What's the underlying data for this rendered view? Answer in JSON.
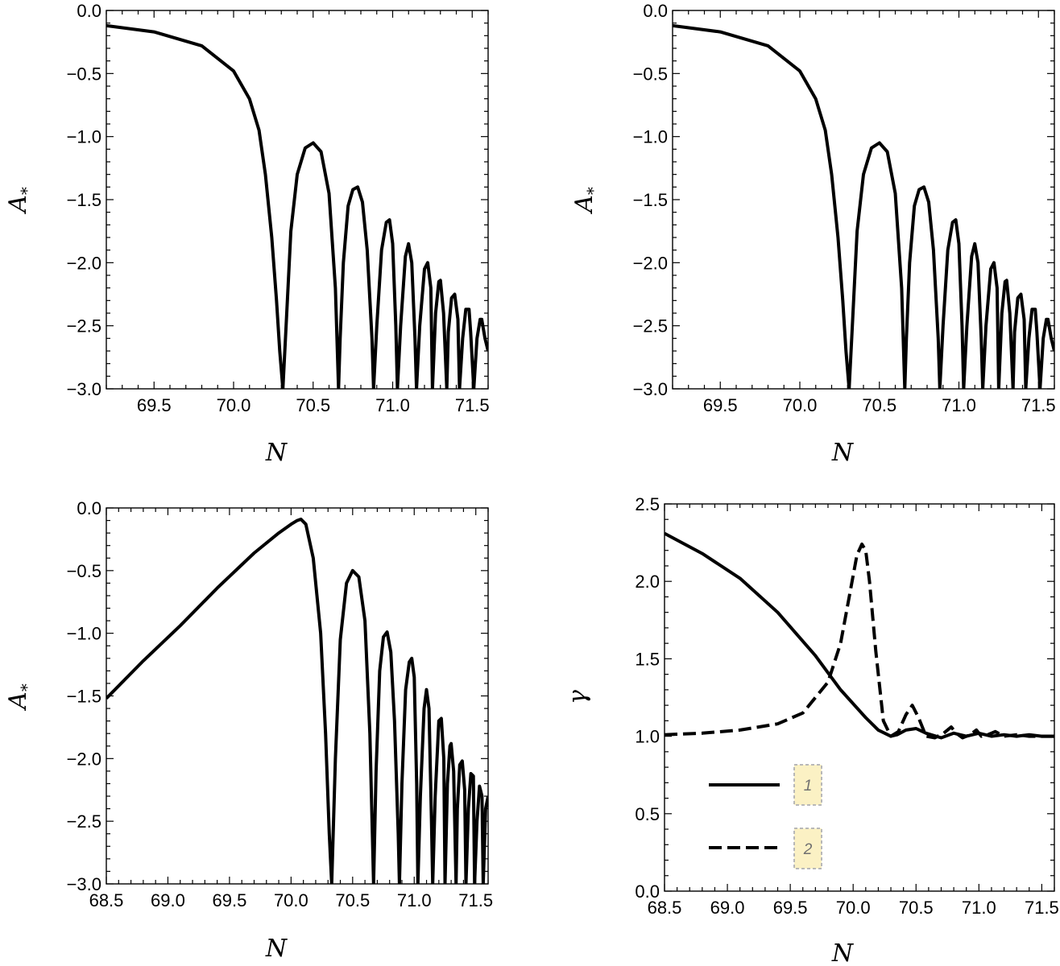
{
  "chart_data": [
    {
      "type": "line",
      "id": "top-left",
      "xlabel": "N",
      "ylabel": "A",
      "ylabel_sub": "*",
      "xlim": [
        69.2,
        71.6
      ],
      "ylim": [
        -3.0,
        0.0
      ],
      "xticks": [
        69.5,
        70.0,
        70.5,
        71.0,
        71.5
      ],
      "xtick_labels": [
        "69.5",
        "70.0",
        "70.5",
        "71.0",
        "71.5"
      ],
      "yticks": [
        0.0,
        -0.5,
        -1.0,
        -1.5,
        -2.0,
        -2.5,
        -3.0
      ],
      "ytick_labels": [
        "0.0",
        "−0.5",
        "−1.0",
        "−1.5",
        "−2.0",
        "−2.5",
        "−3.0"
      ],
      "series": [
        {
          "name": "A*",
          "style": "solid",
          "x": [
            69.2,
            69.5,
            69.8,
            70.0,
            70.1,
            70.16,
            70.2,
            70.24,
            70.27,
            70.29,
            70.31,
            70.33,
            70.36,
            70.4,
            70.45,
            70.5,
            70.55,
            70.6,
            70.64,
            70.66,
            70.67,
            70.69,
            70.72,
            70.75,
            70.78,
            70.81,
            70.84,
            70.87,
            70.88,
            70.9,
            70.93,
            70.96,
            70.98,
            71.0,
            71.02,
            71.03,
            71.05,
            71.08,
            71.1,
            71.12,
            71.14,
            71.15,
            71.17,
            71.2,
            71.22,
            71.24,
            71.25,
            71.27,
            71.29,
            71.3,
            71.32,
            71.34,
            71.35,
            71.37,
            71.39,
            71.41,
            71.42,
            71.44,
            71.46,
            71.48,
            71.49,
            71.51,
            71.53,
            71.55,
            71.56,
            71.58,
            71.6
          ],
          "y": [
            -0.12,
            -0.17,
            -0.28,
            -0.48,
            -0.7,
            -0.95,
            -1.3,
            -1.8,
            -2.3,
            -2.7,
            -3.0,
            -2.5,
            -1.75,
            -1.3,
            -1.09,
            -1.05,
            -1.12,
            -1.45,
            -2.2,
            -3.0,
            -2.6,
            -2.0,
            -1.55,
            -1.42,
            -1.4,
            -1.52,
            -1.9,
            -2.6,
            -3.0,
            -2.5,
            -1.9,
            -1.68,
            -1.66,
            -1.85,
            -2.5,
            -3.0,
            -2.5,
            -1.95,
            -1.85,
            -2.0,
            -2.6,
            -3.0,
            -2.5,
            -2.05,
            -2.0,
            -2.2,
            -3.0,
            -2.4,
            -2.15,
            -2.14,
            -2.4,
            -3.0,
            -2.55,
            -2.28,
            -2.25,
            -2.45,
            -3.0,
            -2.6,
            -2.37,
            -2.37,
            -2.55,
            -3.0,
            -2.6,
            -2.45,
            -2.45,
            -2.6,
            -2.7
          ]
        }
      ]
    },
    {
      "type": "line",
      "id": "top-right",
      "xlabel": "N",
      "ylabel": "A",
      "ylabel_sub": "*",
      "xlim": [
        69.2,
        71.6
      ],
      "ylim": [
        -3.0,
        0.0
      ],
      "xticks": [
        69.5,
        70.0,
        70.5,
        71.0,
        71.5
      ],
      "xtick_labels": [
        "69.5",
        "70.0",
        "70.5",
        "71.0",
        "71.5"
      ],
      "yticks": [
        0.0,
        -0.5,
        -1.0,
        -1.5,
        -2.0,
        -2.5,
        -3.0
      ],
      "ytick_labels": [
        "0.0",
        "−0.5",
        "−1.0",
        "−1.5",
        "−2.0",
        "−2.5",
        "−3.0"
      ],
      "series": [
        {
          "name": "A*",
          "style": "solid",
          "x": [
            69.2,
            69.5,
            69.8,
            70.0,
            70.1,
            70.16,
            70.2,
            70.24,
            70.27,
            70.29,
            70.31,
            70.33,
            70.36,
            70.4,
            70.45,
            70.5,
            70.55,
            70.6,
            70.64,
            70.66,
            70.67,
            70.69,
            70.72,
            70.75,
            70.78,
            70.81,
            70.84,
            70.87,
            70.88,
            70.9,
            70.93,
            70.96,
            70.98,
            71.0,
            71.02,
            71.03,
            71.05,
            71.08,
            71.1,
            71.12,
            71.14,
            71.15,
            71.17,
            71.2,
            71.22,
            71.24,
            71.25,
            71.27,
            71.29,
            71.3,
            71.32,
            71.34,
            71.35,
            71.37,
            71.39,
            71.41,
            71.42,
            71.44,
            71.46,
            71.48,
            71.49,
            71.51,
            71.53,
            71.55,
            71.56,
            71.58,
            71.6
          ],
          "y": [
            -0.12,
            -0.17,
            -0.28,
            -0.48,
            -0.7,
            -0.95,
            -1.3,
            -1.8,
            -2.3,
            -2.7,
            -3.0,
            -2.5,
            -1.75,
            -1.3,
            -1.09,
            -1.05,
            -1.12,
            -1.45,
            -2.2,
            -3.0,
            -2.6,
            -2.0,
            -1.55,
            -1.42,
            -1.4,
            -1.52,
            -1.9,
            -2.6,
            -3.0,
            -2.5,
            -1.9,
            -1.68,
            -1.66,
            -1.85,
            -2.5,
            -3.0,
            -2.5,
            -1.95,
            -1.85,
            -2.0,
            -2.6,
            -3.0,
            -2.5,
            -2.05,
            -2.0,
            -2.2,
            -3.0,
            -2.4,
            -2.15,
            -2.14,
            -2.4,
            -3.0,
            -2.55,
            -2.28,
            -2.25,
            -2.45,
            -3.0,
            -2.6,
            -2.37,
            -2.37,
            -2.55,
            -3.0,
            -2.6,
            -2.45,
            -2.45,
            -2.6,
            -2.7
          ]
        }
      ]
    },
    {
      "type": "line",
      "id": "bottom-left",
      "xlabel": "N",
      "ylabel": "A",
      "ylabel_sub": "*",
      "xlim": [
        68.5,
        71.6
      ],
      "ylim": [
        -3.0,
        0.0
      ],
      "xticks": [
        68.5,
        69.0,
        69.5,
        70.0,
        70.5,
        71.0,
        71.5
      ],
      "xtick_labels": [
        "68.5",
        "69.0",
        "69.5",
        "70.0",
        "70.5",
        "71.0",
        "71.5"
      ],
      "yticks": [
        0.0,
        -0.5,
        -1.0,
        -1.5,
        -2.0,
        -2.5,
        -3.0
      ],
      "ytick_labels": [
        "0.0",
        "−0.5",
        "−1.0",
        "−1.5",
        "−2.0",
        "−2.5",
        "−3.0"
      ],
      "series": [
        {
          "name": "A*",
          "style": "solid",
          "x": [
            68.5,
            68.8,
            69.1,
            69.4,
            69.7,
            69.9,
            70.0,
            70.05,
            70.08,
            70.12,
            70.18,
            70.24,
            70.28,
            70.31,
            70.33,
            70.36,
            70.4,
            70.45,
            70.5,
            70.55,
            70.6,
            70.64,
            70.66,
            70.67,
            70.69,
            70.72,
            70.75,
            70.78,
            70.81,
            70.84,
            70.87,
            70.88,
            70.9,
            70.93,
            70.96,
            70.98,
            71.0,
            71.02,
            71.03,
            71.05,
            71.08,
            71.1,
            71.12,
            71.14,
            71.15,
            71.17,
            71.2,
            71.22,
            71.24,
            71.25,
            71.27,
            71.29,
            71.3,
            71.32,
            71.34,
            71.35,
            71.37,
            71.39,
            71.41,
            71.42,
            71.44,
            71.46,
            71.48,
            71.49,
            71.51,
            71.53,
            71.55,
            71.56,
            71.58,
            71.6
          ],
          "y": [
            -1.52,
            -1.22,
            -0.94,
            -0.64,
            -0.36,
            -0.2,
            -0.13,
            -0.1,
            -0.09,
            -0.13,
            -0.4,
            -1.0,
            -1.8,
            -2.6,
            -3.0,
            -2.0,
            -1.05,
            -0.6,
            -0.5,
            -0.55,
            -0.9,
            -1.8,
            -2.6,
            -3.0,
            -2.1,
            -1.3,
            -1.03,
            -0.99,
            -1.15,
            -1.7,
            -2.6,
            -3.0,
            -2.2,
            -1.45,
            -1.23,
            -1.2,
            -1.35,
            -2.2,
            -3.0,
            -2.3,
            -1.6,
            -1.45,
            -1.6,
            -2.5,
            -3.0,
            -2.3,
            -1.7,
            -1.68,
            -2.0,
            -3.0,
            -2.2,
            -1.9,
            -1.88,
            -2.1,
            -3.0,
            -2.4,
            -2.05,
            -2.02,
            -2.25,
            -3.0,
            -2.4,
            -2.12,
            -2.14,
            -3.0,
            -2.5,
            -2.22,
            -2.3,
            -3.0,
            -2.4,
            -2.3
          ]
        }
      ]
    },
    {
      "type": "line",
      "id": "bottom-right",
      "xlabel": "N",
      "ylabel": "γ",
      "xlim": [
        68.5,
        71.6
      ],
      "ylim": [
        0.0,
        2.5
      ],
      "xticks": [
        68.5,
        69.0,
        69.5,
        70.0,
        70.5,
        71.0,
        71.5
      ],
      "xtick_labels": [
        "68.5",
        "69.0",
        "69.5",
        "70.0",
        "70.5",
        "71.0",
        "71.5"
      ],
      "yticks": [
        0.0,
        0.5,
        1.0,
        1.5,
        2.0,
        2.5
      ],
      "ytick_labels": [
        "0.0",
        "0.5",
        "1.0",
        "1.5",
        "2.0",
        "2.5"
      ],
      "legend": {
        "position": "bottom-left",
        "entries": [
          "1",
          "2"
        ]
      },
      "series": [
        {
          "name": "1",
          "style": "solid",
          "x": [
            68.5,
            68.8,
            69.1,
            69.4,
            69.7,
            69.9,
            70.1,
            70.2,
            70.3,
            70.35,
            70.42,
            70.5,
            70.58,
            70.7,
            70.8,
            70.9,
            71.0,
            71.1,
            71.2,
            71.3,
            71.4,
            71.5,
            71.6
          ],
          "y": [
            2.31,
            2.18,
            2.02,
            1.8,
            1.52,
            1.3,
            1.12,
            1.04,
            1.0,
            1.01,
            1.04,
            1.05,
            1.02,
            0.99,
            1.02,
            1.0,
            1.02,
            1.0,
            1.01,
            1.0,
            1.01,
            1.0,
            1.0
          ]
        },
        {
          "name": "2",
          "style": "dashed",
          "x": [
            68.5,
            68.8,
            69.1,
            69.4,
            69.6,
            69.8,
            69.9,
            69.98,
            70.03,
            70.07,
            70.1,
            70.13,
            70.18,
            70.24,
            70.3,
            70.36,
            70.42,
            70.47,
            70.52,
            70.58,
            70.65,
            70.72,
            70.78,
            70.82,
            70.87,
            70.93,
            70.98,
            71.02,
            71.07,
            71.13,
            71.2,
            71.3,
            71.4,
            71.5,
            71.6
          ],
          "y": [
            1.01,
            1.02,
            1.04,
            1.08,
            1.15,
            1.35,
            1.6,
            1.95,
            2.17,
            2.24,
            2.2,
            2.0,
            1.55,
            1.1,
            1.0,
            1.03,
            1.14,
            1.2,
            1.12,
            1.0,
            0.99,
            1.02,
            1.06,
            1.02,
            0.99,
            1.01,
            1.04,
            1.0,
            1.01,
            1.03,
            1.0,
            1.01,
            1.0,
            1.0,
            1.0
          ]
        }
      ]
    }
  ]
}
